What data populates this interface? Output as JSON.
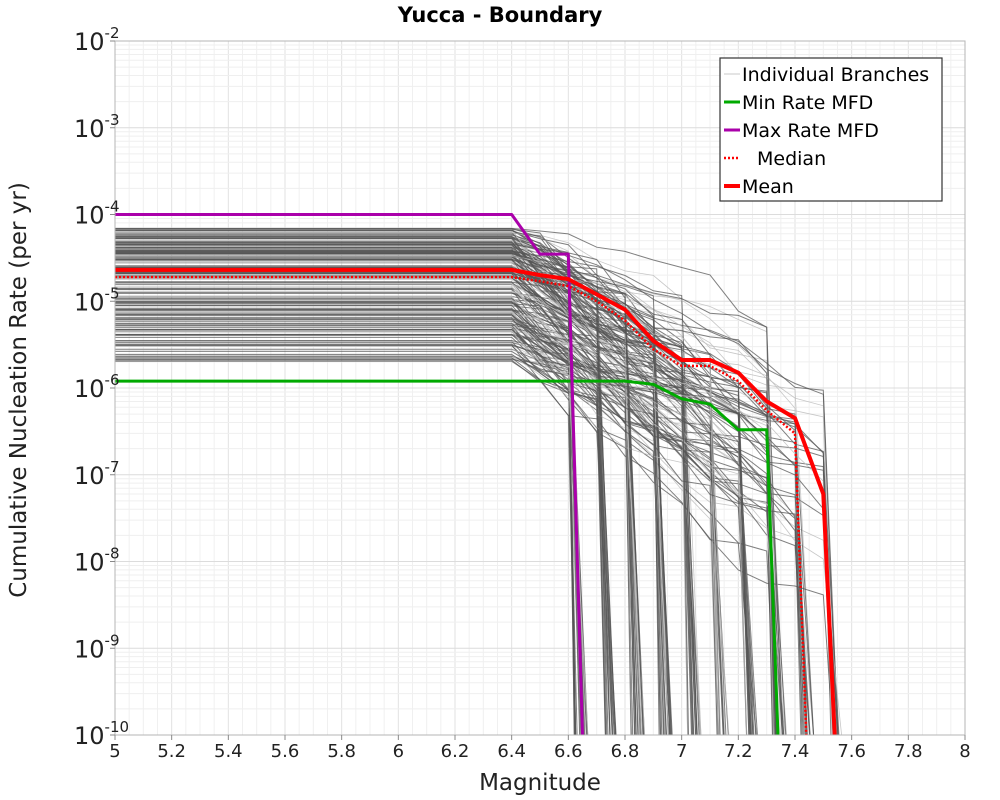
{
  "chart_data": {
    "type": "line",
    "title": "Yucca - Boundary",
    "xlabel": "Magnitude",
    "ylabel": "Cumulative Nucleation Rate (per yr)",
    "xlim": [
      5,
      8
    ],
    "ylim_log10": [
      -10,
      -2
    ],
    "yscale": "log",
    "x_ticks": [
      "5",
      "5.2",
      "5.4",
      "5.6",
      "5.8",
      "6",
      "6.2",
      "6.4",
      "6.6",
      "6.8",
      "7",
      "7.2",
      "7.4",
      "7.6",
      "7.8",
      "8"
    ],
    "y_ticks": [
      {
        "base": "10",
        "exp": "-2"
      },
      {
        "base": "10",
        "exp": "-3"
      },
      {
        "base": "10",
        "exp": "-4"
      },
      {
        "base": "10",
        "exp": "-5"
      },
      {
        "base": "10",
        "exp": "-6"
      },
      {
        "base": "10",
        "exp": "-7"
      },
      {
        "base": "10",
        "exp": "-8"
      },
      {
        "base": "10",
        "exp": "-9"
      },
      {
        "base": "10",
        "exp": "-10"
      }
    ],
    "legend": {
      "position": "top-right",
      "entries": [
        {
          "label": "Individual Branches",
          "color": "#c8c8c8",
          "style": "thin"
        },
        {
          "label": "Min Rate MFD",
          "color": "#00aa00",
          "style": "solid"
        },
        {
          "label": "Max Rate MFD",
          "color": "#aa00aa",
          "style": "solid"
        },
        {
          "label": "Median",
          "color": "#ff0000",
          "style": "dotted"
        },
        {
          "label": "Mean",
          "color": "#ff0000",
          "style": "thick"
        }
      ]
    },
    "series": [
      {
        "name": "Min Rate MFD",
        "color": "#00aa00",
        "x": [
          5,
          6.6,
          6.7,
          6.8,
          6.9,
          7.0,
          7.1,
          7.2,
          7.3,
          7.34
        ],
        "y": [
          1.2e-06,
          1.2e-06,
          1.2e-06,
          1.2e-06,
          1.1e-06,
          7.5e-07,
          6.5e-07,
          3.3e-07,
          3.3e-07,
          1e-10
        ]
      },
      {
        "name": "Max Rate MFD",
        "color": "#aa00aa",
        "x": [
          5,
          6.4,
          6.5,
          6.6,
          6.65
        ],
        "y": [
          0.0001,
          0.0001,
          3.5e-05,
          3.5e-05,
          1e-10
        ]
      },
      {
        "name": "Median",
        "color": "#ff0000",
        "x": [
          5,
          6.4,
          6.5,
          6.6,
          6.7,
          6.8,
          6.9,
          7.0,
          7.1,
          7.2,
          7.3,
          7.4,
          7.44
        ],
        "y": [
          1.9e-05,
          1.9e-05,
          1.7e-05,
          1.5e-05,
          1e-05,
          6e-06,
          2.8e-06,
          1.8e-06,
          1.8e-06,
          1.2e-06,
          5.5e-07,
          3e-07,
          1e-10
        ]
      },
      {
        "name": "Mean",
        "color": "#ff0000",
        "x": [
          5,
          6.4,
          6.5,
          6.6,
          6.7,
          6.8,
          6.9,
          7.0,
          7.1,
          7.2,
          7.3,
          7.4,
          7.5,
          7.54
        ],
        "y": [
          2.3e-05,
          2.3e-05,
          2e-05,
          1.8e-05,
          1.2e-05,
          8e-06,
          3.5e-06,
          2.1e-06,
          2.1e-06,
          1.5e-06,
          7e-07,
          4.5e-07,
          6e-08,
          1e-10
        ]
      }
    ],
    "branches": {
      "name": "Individual Branches",
      "count": 220,
      "plateau_range": [
        2e-06,
        7e-05
      ],
      "plateau_until": 6.4,
      "mmax_values": [
        6.6,
        6.7,
        6.8,
        6.9,
        7.0,
        7.1,
        7.2,
        7.3,
        7.4,
        7.5
      ],
      "grey_color": "#555555",
      "light_color": "#bdbdbd"
    }
  }
}
